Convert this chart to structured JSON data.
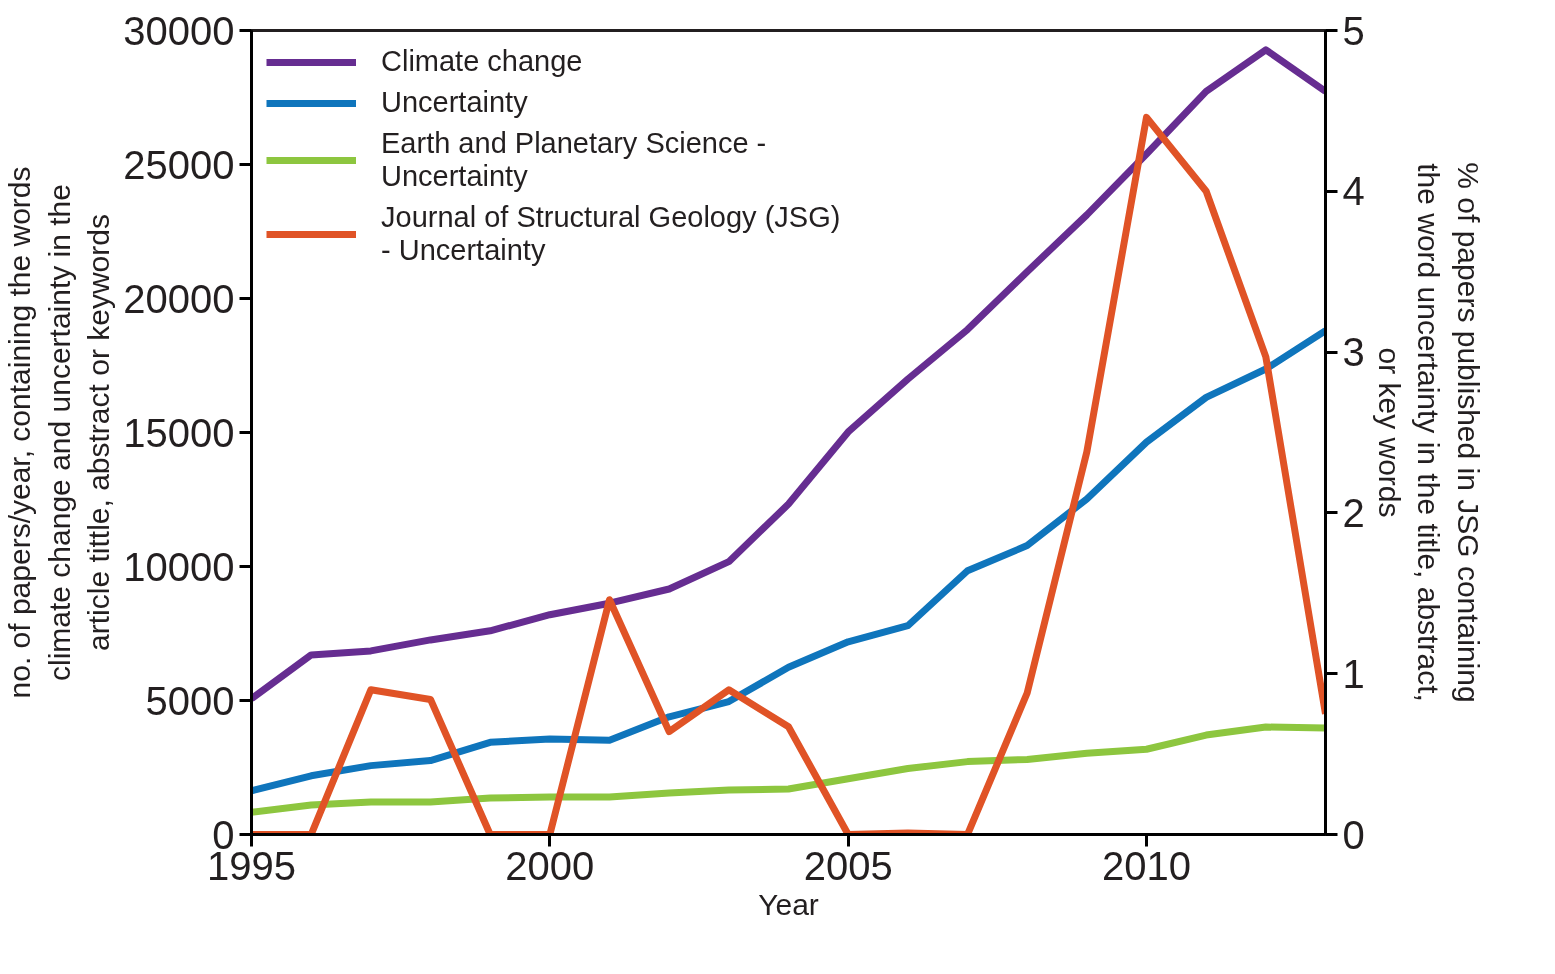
{
  "chart_data": {
    "type": "line",
    "xlabel": "Year",
    "ylabel": "no. of papers/year, containing the words\nclimate change and uncertainty in the\narticle tittle, abstract or keywords",
    "y2label": "% of papers published in JSG containing\nthe word uncertainty in the title, abstract,\nor key words",
    "x": [
      1995,
      1996,
      1997,
      1998,
      1999,
      2000,
      2001,
      2002,
      2003,
      2004,
      2005,
      2006,
      2007,
      2008,
      2009,
      2010,
      2011,
      2012,
      2013
    ],
    "xlim": [
      1995,
      2013
    ],
    "xticks": [
      1995,
      2000,
      2005,
      2010
    ],
    "ylim": [
      0,
      30000
    ],
    "yticks": [
      0,
      5000,
      10000,
      15000,
      20000,
      25000,
      30000
    ],
    "y2lim": [
      0,
      5
    ],
    "y2ticks": [
      0,
      1,
      2,
      3,
      4,
      5
    ],
    "grid": false,
    "legend": "top left",
    "line_style": "solid",
    "marker": "none",
    "series": [
      {
        "name": "Climate change",
        "color": "#662d91",
        "values": [
          5070,
          6700,
          6850,
          7260,
          7600,
          8200,
          8630,
          9160,
          10180,
          12330,
          15020,
          16990,
          18840,
          21000,
          23120,
          25390,
          27730,
          29280,
          27730
        ]
      },
      {
        "name": "Uncertainty",
        "color": "#0f75bc",
        "values": [
          1630,
          2190,
          2570,
          2760,
          3440,
          3560,
          3520,
          4390,
          4960,
          6240,
          7190,
          7790,
          9840,
          10780,
          12520,
          14640,
          16310,
          17370,
          18800
        ]
      },
      {
        "name": "Earth and Planetary Science -\nUncertainty",
        "color": "#8dc63f",
        "values": [
          830,
          1100,
          1210,
          1210,
          1360,
          1400,
          1400,
          1550,
          1660,
          1700,
          2080,
          2460,
          2720,
          2800,
          3030,
          3180,
          3710,
          4010,
          3970
        ]
      },
      {
        "name": "Journal of Structural Geology (JSG)\n- Uncertainty",
        "color": "#e05326",
        "axis": "y2",
        "values": [
          0,
          0,
          0.9,
          0.84,
          0,
          0,
          1.46,
          0.64,
          0.9,
          0.67,
          0,
          0.01,
          0,
          0.88,
          2.38,
          4.46,
          4.0,
          2.97,
          0.75
        ]
      }
    ]
  }
}
